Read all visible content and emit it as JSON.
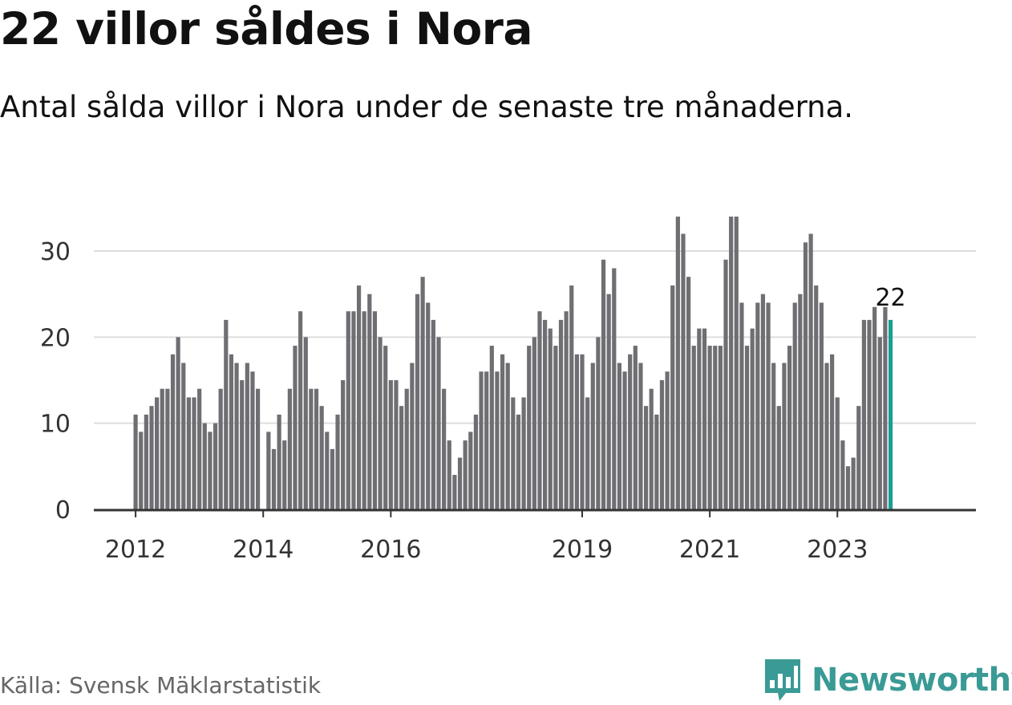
{
  "header": {
    "title": "22 villor såldes i Nora",
    "subtitle": "Antal sålda villor i Nora under de senaste tre månaderna."
  },
  "footer": {
    "source": "Källa: Svensk Mäklarstatistik",
    "brand": "Newsworthy"
  },
  "colors": {
    "bar": "#6e6e73",
    "highlight": "#1a9e94",
    "grid": "#dddddd",
    "axis": "#333333",
    "brand": "#3a9a95"
  },
  "chart_data": {
    "type": "bar",
    "start": "2012-01",
    "values": [
      11,
      9,
      11,
      12,
      13,
      14,
      14,
      18,
      20,
      17,
      13,
      13,
      14,
      10,
      9,
      10,
      14,
      22,
      18,
      17,
      15,
      17,
      16,
      14,
      0,
      9,
      7,
      11,
      8,
      14,
      19,
      23,
      20,
      14,
      14,
      12,
      9,
      7,
      11,
      15,
      23,
      23,
      26,
      23,
      25,
      23,
      20,
      19,
      15,
      15,
      12,
      14,
      17,
      25,
      27,
      24,
      22,
      20,
      14,
      8,
      4,
      6,
      8,
      9,
      11,
      16,
      16,
      19,
      16,
      18,
      17,
      13,
      11,
      13,
      19,
      20,
      23,
      22,
      21,
      19,
      22,
      23,
      26,
      18,
      18,
      13,
      17,
      20,
      29,
      25,
      28,
      17,
      16,
      18,
      19,
      17,
      12,
      14,
      11,
      15,
      16,
      26,
      34,
      32,
      27,
      19,
      21,
      21,
      19,
      19,
      19,
      29,
      34,
      34,
      24,
      19,
      21,
      24,
      25,
      24,
      17,
      12,
      17,
      19,
      24,
      25,
      31,
      32,
      26,
      24,
      17,
      18,
      13,
      8,
      5,
      6,
      12,
      22,
      22,
      23.5,
      20,
      23.5,
      22
    ],
    "x_ticks": [
      "2012",
      "2014",
      "2016",
      "2019",
      "2021",
      "2023"
    ],
    "y_ticks": [
      0,
      10,
      20,
      30
    ],
    "ylim": [
      0,
      35
    ],
    "highlight_label": "22",
    "grid": true
  }
}
